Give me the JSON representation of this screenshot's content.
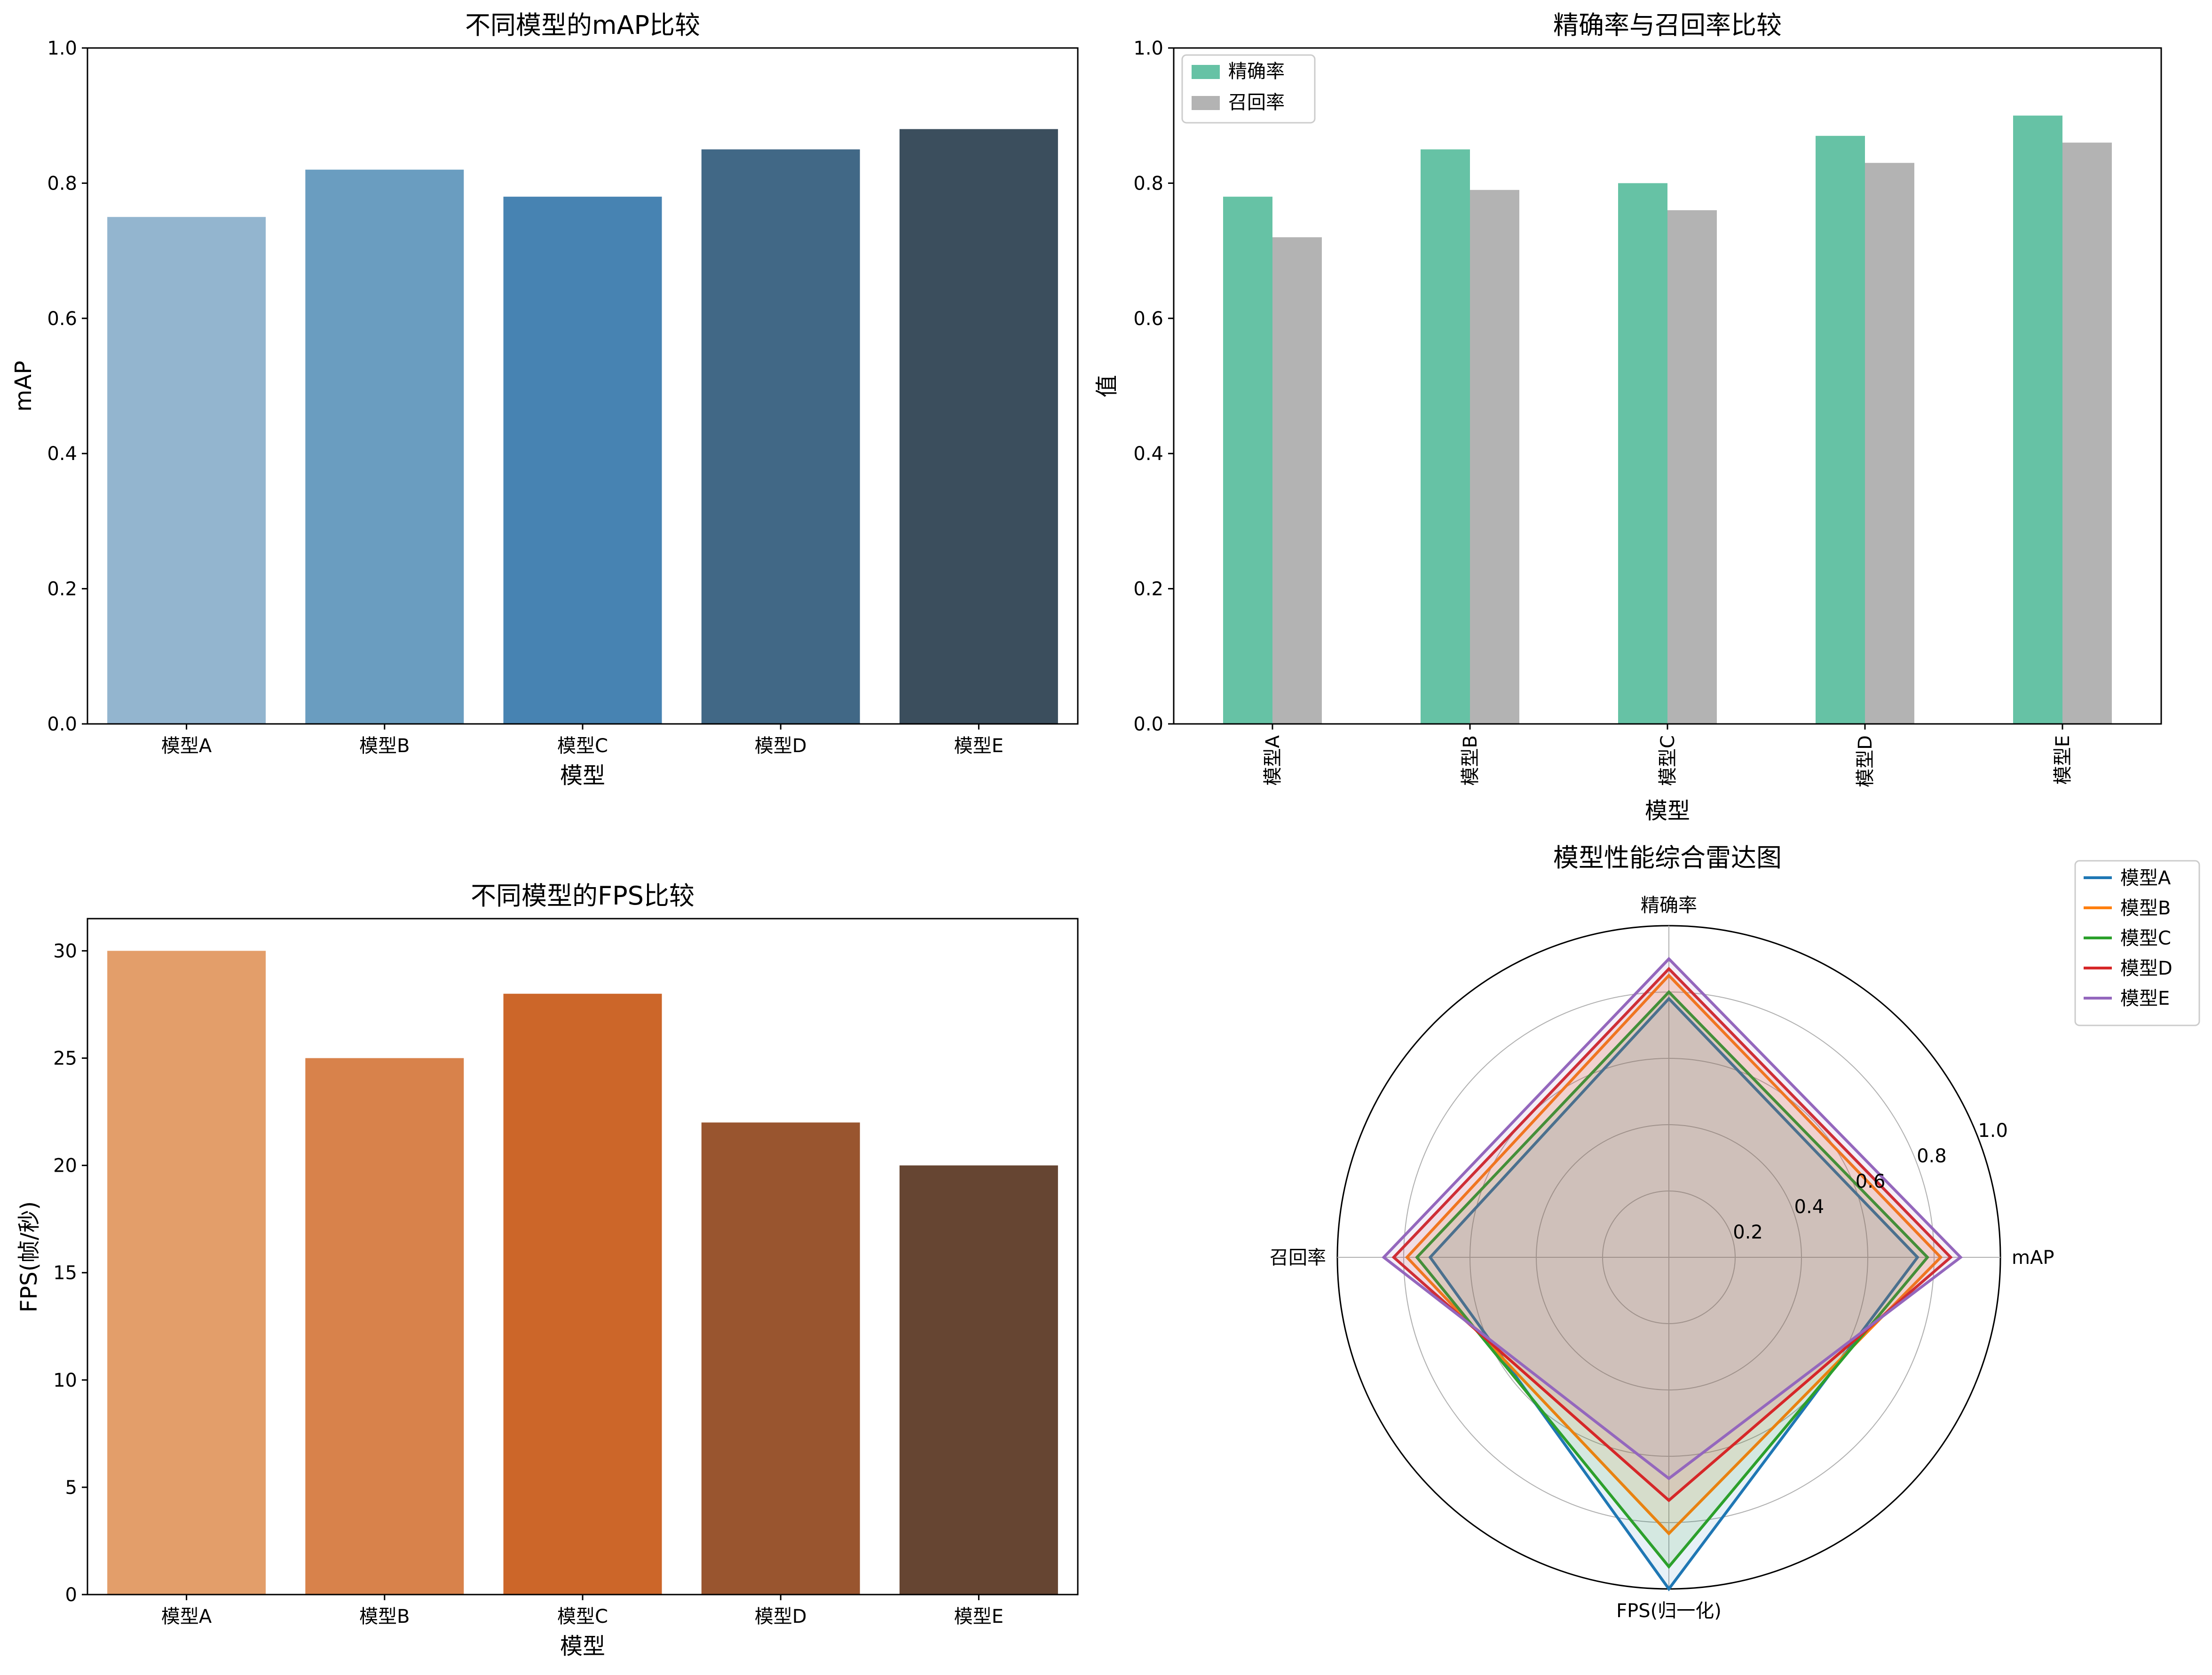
{
  "chart_data": [
    {
      "id": "map",
      "type": "bar",
      "title": "不同模型的mAP比较",
      "xlabel": "模型",
      "ylabel": "mAP",
      "categories": [
        "模型A",
        "模型B",
        "模型C",
        "模型D",
        "模型E"
      ],
      "values": [
        0.75,
        0.82,
        0.78,
        0.85,
        0.88
      ],
      "ylim": [
        0,
        1.0
      ],
      "yticks": [
        0.0,
        0.2,
        0.4,
        0.6,
        0.8,
        1.0
      ],
      "yticklabels": [
        "0.0",
        "0.2",
        "0.4",
        "0.6",
        "0.8",
        "1.0"
      ],
      "colors": [
        "#93b5cf",
        "#6a9dc0",
        "#4783b2",
        "#416886",
        "#3b4e5d"
      ],
      "grid": false
    },
    {
      "id": "pr",
      "type": "bar",
      "title": "精确率与召回率比较",
      "xlabel": "模型",
      "ylabel": "值",
      "categories": [
        "模型A",
        "模型B",
        "模型C",
        "模型D",
        "模型E"
      ],
      "series": [
        {
          "name": "精确率",
          "values": [
            0.78,
            0.85,
            0.8,
            0.87,
            0.9
          ],
          "color": "#66c2a5"
        },
        {
          "name": "召回率",
          "values": [
            0.72,
            0.79,
            0.76,
            0.83,
            0.86
          ],
          "color": "#b3b3b3"
        }
      ],
      "ylim": [
        0,
        1.0
      ],
      "yticks": [
        0.0,
        0.2,
        0.4,
        0.6,
        0.8,
        1.0
      ],
      "yticklabels": [
        "0.0",
        "0.2",
        "0.4",
        "0.6",
        "0.8",
        "1.0"
      ],
      "legend_position": "top-left",
      "xtick_rotation": "vertical",
      "grid": false
    },
    {
      "id": "fps",
      "type": "bar",
      "title": "不同模型的FPS比较",
      "xlabel": "模型",
      "ylabel": "FPS(帧/秒)",
      "categories": [
        "模型A",
        "模型B",
        "模型C",
        "模型D",
        "模型E"
      ],
      "values": [
        30,
        25,
        28,
        22,
        20
      ],
      "ylim": [
        0,
        31.5
      ],
      "yticks": [
        0,
        5,
        10,
        15,
        20,
        25,
        30
      ],
      "yticklabels": [
        "0",
        "5",
        "10",
        "15",
        "20",
        "25",
        "30"
      ],
      "colors": [
        "#e39e6a",
        "#d8824b",
        "#cc6629",
        "#99552f",
        "#664532"
      ],
      "grid": false
    },
    {
      "id": "radar",
      "type": "radar",
      "title": "模型性能综合雷达图",
      "axes": [
        "mAP",
        "精确率",
        "召回率",
        "FPS(归一化)"
      ],
      "rlim": [
        0,
        1.0
      ],
      "rticks": [
        0.2,
        0.4,
        0.6,
        0.8,
        1.0
      ],
      "rticklabels": [
        "0.2",
        "0.4",
        "0.6",
        "0.8",
        "1.0"
      ],
      "series": [
        {
          "name": "模型A",
          "values": [
            0.75,
            0.78,
            0.72,
            1.0
          ],
          "color": "#1f77b4"
        },
        {
          "name": "模型B",
          "values": [
            0.82,
            0.85,
            0.79,
            0.833
          ],
          "color": "#ff7f0e"
        },
        {
          "name": "模型C",
          "values": [
            0.78,
            0.8,
            0.76,
            0.933
          ],
          "color": "#2ca02c"
        },
        {
          "name": "模型D",
          "values": [
            0.85,
            0.87,
            0.83,
            0.733
          ],
          "color": "#d62728"
        },
        {
          "name": "模型E",
          "values": [
            0.88,
            0.9,
            0.86,
            0.667
          ],
          "color": "#9467bd"
        }
      ],
      "legend_position": "top-right",
      "grid": true
    }
  ]
}
